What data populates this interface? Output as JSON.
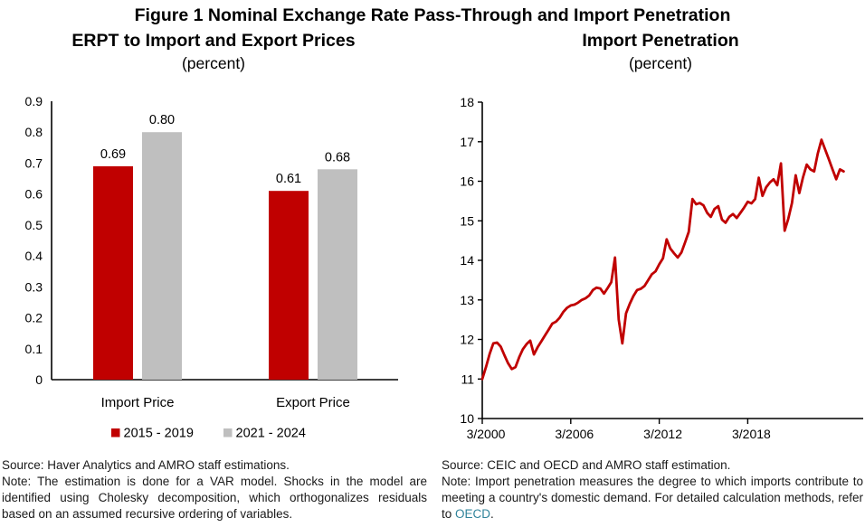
{
  "header": {
    "title": "Figure 1 Nominal Exchange Rate Pass-Through and Import Penetration",
    "left": {
      "subtitle": "ERPT to Import and Export Prices",
      "unit": "(percent)"
    },
    "right": {
      "subtitle": "Import Penetration",
      "unit": "(percent)"
    }
  },
  "colors": {
    "red": "#C00000",
    "gray": "#BFBFBF",
    "link": "#31849B",
    "axis": "#000000"
  },
  "chart_data": [
    {
      "id": "erpt-bar-chart",
      "type": "bar",
      "title": "ERPT to Import and Export Prices",
      "unit": "percent",
      "categories": [
        "Import Price",
        "Export Price"
      ],
      "series": [
        {
          "name": "2015 - 2019",
          "color": "#C00000",
          "values": [
            0.69,
            0.61
          ]
        },
        {
          "name": "2021 - 2024",
          "color": "#BFBFBF",
          "values": [
            0.8,
            0.68
          ]
        }
      ],
      "data_labels": [
        [
          "0.69",
          "0.61"
        ],
        [
          "0.80",
          "0.68"
        ]
      ],
      "ylim": [
        0,
        0.9
      ],
      "yticks": [
        "0.9",
        "0.8",
        "0.7",
        "0.6",
        "0.5",
        "0.4",
        "0.3",
        "0.2",
        "0.1",
        "0"
      ],
      "grid": false,
      "legend_position": "bottom"
    },
    {
      "id": "import-penetration-line-chart",
      "type": "line",
      "title": "Import Penetration",
      "unit": "percent",
      "line_color": "#C00000",
      "x_frequency": "quarterly",
      "x_start": "3/2000",
      "xticks": [
        "3/2000",
        "3/2006",
        "3/2012",
        "3/2018"
      ],
      "xtick_interval_years": 6,
      "ylim": [
        10,
        18
      ],
      "yticks": [
        18,
        17,
        16,
        15,
        14,
        13,
        12,
        11,
        10
      ],
      "grid": false,
      "values": [
        11.0,
        11.3,
        11.63,
        11.9,
        11.92,
        11.82,
        11.6,
        11.4,
        11.25,
        11.3,
        11.55,
        11.75,
        11.88,
        11.97,
        11.62,
        11.8,
        11.95,
        12.1,
        12.25,
        12.4,
        12.45,
        12.55,
        12.7,
        12.8,
        12.86,
        12.88,
        12.93,
        13.0,
        13.04,
        13.11,
        13.25,
        13.31,
        13.29,
        13.16,
        13.3,
        13.45,
        14.07,
        12.5,
        11.9,
        12.66,
        12.9,
        13.1,
        13.25,
        13.28,
        13.35,
        13.5,
        13.65,
        13.72,
        13.9,
        14.05,
        14.53,
        14.3,
        14.18,
        14.07,
        14.2,
        14.45,
        14.72,
        15.55,
        15.42,
        15.45,
        15.39,
        15.2,
        15.1,
        15.3,
        15.37,
        15.03,
        14.95,
        15.1,
        15.17,
        15.07,
        15.2,
        15.33,
        15.48,
        15.44,
        15.55,
        16.09,
        15.63,
        15.85,
        15.97,
        16.05,
        15.9,
        16.45,
        14.75,
        15.05,
        15.45,
        16.15,
        15.7,
        16.1,
        16.42,
        16.3,
        16.25,
        16.7,
        17.05,
        16.8,
        16.55,
        16.3,
        16.05,
        16.3,
        16.25
      ]
    }
  ],
  "footnotes": {
    "left": {
      "source": "Source: Haver Analytics and AMRO staff estimations.",
      "note": "Note: The estimation is done for a VAR model. Shocks in the model are identified using Cholesky decomposition, which orthogonalizes residuals based on an assumed recursive ordering of variables."
    },
    "right": {
      "source": "Source: CEIC and OECD and AMRO staff estimation.",
      "note_before_link": "Note: Import penetration measures the degree to which imports contribute to meeting a country's domestic demand. For detailed calculation methods, refer to ",
      "link_text": "OECD",
      "note_after_link": "."
    }
  }
}
